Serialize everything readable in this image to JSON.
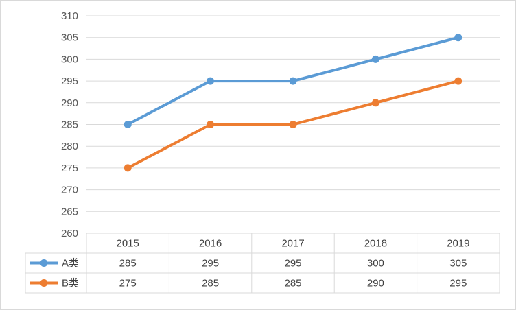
{
  "chart_data": {
    "type": "line",
    "title": "",
    "xlabel": "",
    "ylabel": "",
    "categories": [
      "2015",
      "2016",
      "2017",
      "2018",
      "2019"
    ],
    "ylim": [
      260,
      310
    ],
    "ytick_step": 5,
    "grid": true,
    "legend": "data-table",
    "series": [
      {
        "name": "A类",
        "color": "#5b9bd5",
        "values": [
          285,
          295,
          295,
          300,
          305
        ]
      },
      {
        "name": "B类",
        "color": "#ed7d31",
        "values": [
          275,
          285,
          285,
          290,
          295
        ]
      }
    ]
  }
}
